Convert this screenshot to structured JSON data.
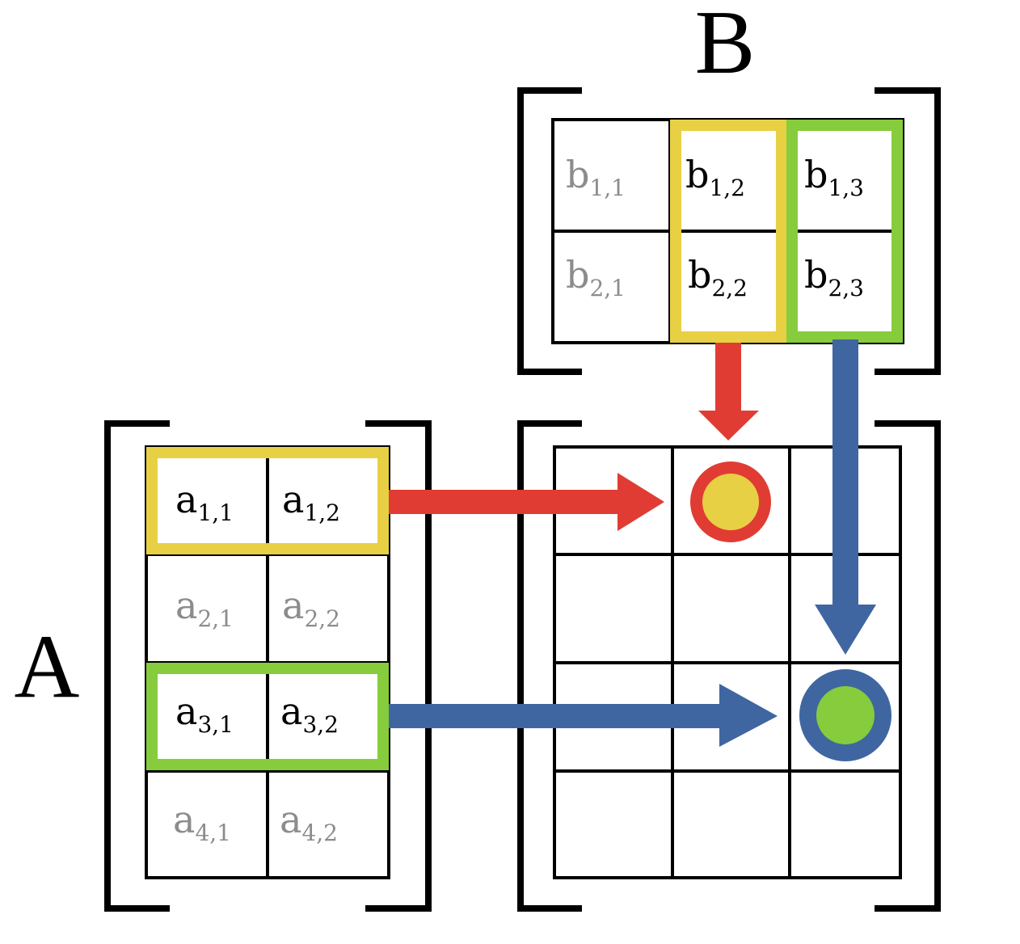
{
  "matrix_a": {
    "label": "A",
    "entries": [
      {
        "base": "a",
        "sub": "1,1",
        "active": true
      },
      {
        "base": "a",
        "sub": "1,2",
        "active": true
      },
      {
        "base": "a",
        "sub": "2,1",
        "active": false
      },
      {
        "base": "a",
        "sub": "2,2",
        "active": false
      },
      {
        "base": "a",
        "sub": "3,1",
        "active": true
      },
      {
        "base": "a",
        "sub": "3,2",
        "active": true
      },
      {
        "base": "a",
        "sub": "4,1",
        "active": false
      },
      {
        "base": "a",
        "sub": "4,2",
        "active": false
      }
    ]
  },
  "matrix_b": {
    "label": "B",
    "entries": [
      {
        "base": "b",
        "sub": "1,1",
        "active": false
      },
      {
        "base": "b",
        "sub": "1,2",
        "active": true
      },
      {
        "base": "b",
        "sub": "1,3",
        "active": true
      },
      {
        "base": "b",
        "sub": "2,1",
        "active": false
      },
      {
        "base": "b",
        "sub": "2,2",
        "active": true
      },
      {
        "base": "b",
        "sub": "2,3",
        "active": true
      }
    ]
  },
  "colors": {
    "yellow_highlight": "#E8D044",
    "green_highlight": "#86CC3C",
    "red_arrow": "#E03C34",
    "blue_arrow": "#3F66A0",
    "active_text": "#000000",
    "inactive_text": "#8C8C8C"
  }
}
